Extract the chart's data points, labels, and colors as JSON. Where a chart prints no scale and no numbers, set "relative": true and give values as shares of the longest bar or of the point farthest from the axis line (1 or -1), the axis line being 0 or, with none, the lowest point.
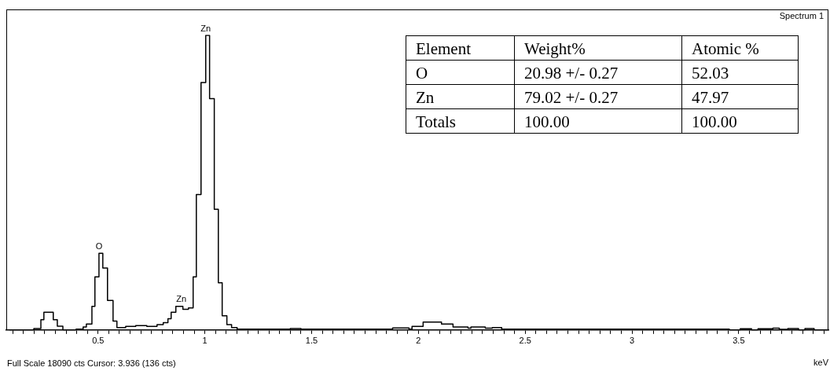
{
  "chart_data": {
    "type": "step",
    "title": "Spectrum 1",
    "xlabel": "keV",
    "relative": true,
    "grid": false,
    "legend": false,
    "tick_labels": "x",
    "xlim": [
      0.07,
      3.92
    ],
    "xticks": [
      {
        "value": 0.1,
        "label": null
      },
      {
        "value": 0.15,
        "label": null
      },
      {
        "value": 0.2,
        "label": null
      },
      {
        "value": 0.25,
        "label": null
      },
      {
        "value": 0.3,
        "label": null
      },
      {
        "value": 0.35,
        "label": null
      },
      {
        "value": 0.4,
        "label": null
      },
      {
        "value": 0.45,
        "label": null
      },
      0.5,
      {
        "value": 0.55,
        "label": null
      },
      {
        "value": 0.6,
        "label": null
      },
      {
        "value": 0.65,
        "label": null
      },
      {
        "value": 0.7,
        "label": null
      },
      {
        "value": 0.75,
        "label": null
      },
      {
        "value": 0.8,
        "label": null
      },
      {
        "value": 0.85,
        "label": null
      },
      {
        "value": 0.9,
        "label": null
      },
      {
        "value": 0.95,
        "label": null
      },
      1,
      {
        "value": 1.05,
        "label": null
      },
      {
        "value": 1.1,
        "label": null
      },
      {
        "value": 1.15,
        "label": null
      },
      {
        "value": 1.2,
        "label": null
      },
      {
        "value": 1.25,
        "label": null
      },
      {
        "value": 1.3,
        "label": null
      },
      {
        "value": 1.35,
        "label": null
      },
      {
        "value": 1.4,
        "label": null
      },
      {
        "value": 1.45,
        "label": null
      },
      1.5,
      {
        "value": 1.55,
        "label": null
      },
      {
        "value": 1.6,
        "label": null
      },
      {
        "value": 1.65,
        "label": null
      },
      {
        "value": 1.7,
        "label": null
      },
      {
        "value": 1.75,
        "label": null
      },
      {
        "value": 1.8,
        "label": null
      },
      {
        "value": 1.85,
        "label": null
      },
      {
        "value": 1.9,
        "label": null
      },
      {
        "value": 1.95,
        "label": null
      },
      2,
      {
        "value": 2.05,
        "label": null
      },
      {
        "value": 2.1,
        "label": null
      },
      {
        "value": 2.15,
        "label": null
      },
      {
        "value": 2.2,
        "label": null
      },
      {
        "value": 2.25,
        "label": null
      },
      {
        "value": 2.3,
        "label": null
      },
      {
        "value": 2.35,
        "label": null
      },
      {
        "value": 2.4,
        "label": null
      },
      {
        "value": 2.45,
        "label": null
      },
      2.5,
      {
        "value": 2.55,
        "label": null
      },
      {
        "value": 2.6,
        "label": null
      },
      {
        "value": 2.65,
        "label": null
      },
      {
        "value": 2.7,
        "label": null
      },
      {
        "value": 2.75,
        "label": null
      },
      {
        "value": 2.8,
        "label": null
      },
      {
        "value": 2.85,
        "label": null
      },
      {
        "value": 2.9,
        "label": null
      },
      {
        "value": 2.95,
        "label": null
      },
      3,
      {
        "value": 3.05,
        "label": null
      },
      {
        "value": 3.1,
        "label": null
      },
      {
        "value": 3.15,
        "label": null
      },
      {
        "value": 3.2,
        "label": null
      },
      {
        "value": 3.25,
        "label": null
      },
      {
        "value": 3.3,
        "label": null
      },
      {
        "value": 3.35,
        "label": null
      },
      {
        "value": 3.4,
        "label": null
      },
      {
        "value": 3.45,
        "label": null
      },
      3.5,
      {
        "value": 3.55,
        "label": null
      },
      {
        "value": 3.6,
        "label": null
      },
      {
        "value": 3.65,
        "label": null
      },
      {
        "value": 3.7,
        "label": null
      },
      {
        "value": 3.75,
        "label": null
      },
      {
        "value": 3.8,
        "label": null
      },
      {
        "value": 3.85,
        "label": null
      },
      {
        "value": 3.9,
        "label": null
      }
    ],
    "series": [
      {
        "color": "#000000",
        "x": [
          0.085,
          0.199,
          0.232,
          0.246,
          0.29,
          0.309,
          0.335,
          0.397,
          0.43,
          0.445,
          0.471,
          0.485,
          0.504,
          0.522,
          0.544,
          0.57,
          0.588,
          0.629,
          0.676,
          0.728,
          0.776,
          0.805,
          0.827,
          0.842,
          0.864,
          0.897,
          0.923,
          0.945,
          0.96,
          0.982,
          1.004,
          1.022,
          1.044,
          1.063,
          1.081,
          1.103,
          1.125,
          1.151,
          1.4,
          1.45,
          1.879,
          1.956,
          1.97,
          2.022,
          2.108,
          2.162,
          2.232,
          2.246,
          2.313,
          2.346,
          2.39,
          3.456,
          3.507,
          3.56,
          3.59,
          3.66,
          3.69,
          3.73,
          3.78,
          3.81,
          3.853,
          3.92
        ],
        "values": [
          0,
          0.005,
          0.035,
          0.06,
          0.035,
          0.013,
          0,
          0.003,
          0.01,
          0.02,
          0.08,
          0.18,
          0.26,
          0.21,
          0.1,
          0.03,
          0.008,
          0.012,
          0.015,
          0.012,
          0.018,
          0.025,
          0.038,
          0.06,
          0.08,
          0.07,
          0.075,
          0.18,
          0.46,
          0.84,
          1,
          0.785,
          0.41,
          0.16,
          0.048,
          0.018,
          0.008,
          0.003,
          0.005,
          0.003,
          0.007,
          0.003,
          0.012,
          0.027,
          0.02,
          0.01,
          0.006,
          0.01,
          0.006,
          0.008,
          0.003,
          0,
          0.004,
          0,
          0.004,
          0.006,
          0.002,
          0.005,
          0,
          0.005,
          0,
          0
        ]
      }
    ],
    "annotations": [
      {
        "text": "Zn",
        "x": 1.004,
        "y": 1
      },
      {
        "text": "O",
        "x": 0.504,
        "y": 0.26
      },
      {
        "text": "Zn",
        "x": 0.89,
        "y": 0.08
      },
      "Full Scale 18090 cts Cursor: 3.936  (136 cts)",
      "Element",
      "Weight%",
      "Atomic %",
      "O",
      "20.98 +/- 0.27",
      "52.03",
      "Zn",
      "79.02 +/- 0.27",
      "47.97",
      "Totals",
      "100.00",
      "100.00"
    ]
  }
}
